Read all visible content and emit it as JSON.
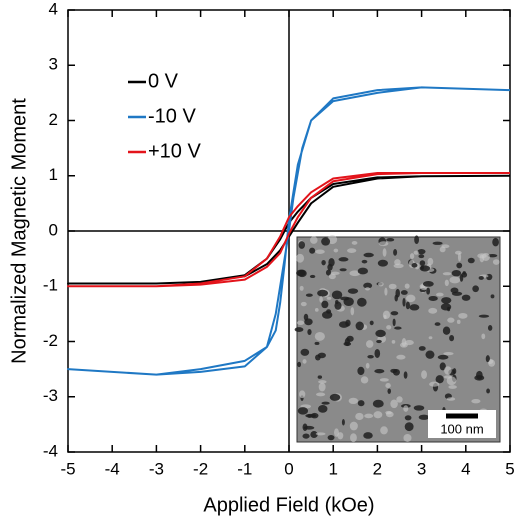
{
  "chart_data": {
    "type": "line",
    "xlabel": "Applied Field (kOe)",
    "ylabel": "Normalized Magnetic Moment",
    "xlim": [
      -5,
      5
    ],
    "ylim": [
      -4,
      4
    ],
    "xticks": [
      -5,
      -4,
      -3,
      -2,
      -1,
      0,
      1,
      2,
      3,
      4,
      5
    ],
    "yticks": [
      -4,
      -3,
      -2,
      -1,
      0,
      1,
      2,
      3,
      4
    ],
    "grid": false,
    "legend": "upper left",
    "inset_label": "100 nm",
    "series": [
      {
        "name": "0 V",
        "color": "#000000",
        "x": [
          5,
          3,
          2,
          1,
          0.5,
          0.2,
          0,
          -0.2,
          -0.5,
          -1,
          -2,
          -3,
          -5,
          -3,
          -2,
          -1,
          -0.5,
          -0.2,
          0,
          0.2,
          0.5,
          1,
          2,
          3,
          5
        ],
        "values": [
          1.0,
          0.99,
          0.97,
          0.85,
          0.6,
          0.35,
          0.15,
          -0.15,
          -0.5,
          -0.8,
          -0.92,
          -0.95,
          -0.95,
          -0.95,
          -0.92,
          -0.82,
          -0.6,
          -0.35,
          -0.1,
          0.15,
          0.5,
          0.8,
          0.95,
          0.99,
          1.0
        ]
      },
      {
        "name": "-10 V",
        "color": "#1f78c4",
        "x": [
          5,
          3,
          2,
          1,
          0.5,
          0.2,
          0,
          -0.1,
          -0.2,
          -0.3,
          -0.5,
          -1,
          -2,
          -3,
          -5,
          -3,
          -2,
          -1,
          -0.5,
          -0.3,
          -0.1,
          0,
          0.1,
          0.3,
          0.5,
          1,
          2,
          3,
          5
        ],
        "values": [
          2.55,
          2.6,
          2.55,
          2.4,
          2.0,
          1.2,
          0.2,
          -0.6,
          -1.3,
          -1.8,
          -2.1,
          -2.35,
          -2.5,
          -2.6,
          -2.5,
          -2.6,
          -2.55,
          -2.45,
          -2.1,
          -1.5,
          -0.5,
          0,
          0.6,
          1.5,
          2.0,
          2.35,
          2.5,
          2.6,
          2.55
        ]
      },
      {
        "name": "+10 V",
        "color": "#e3141b",
        "x": [
          5,
          3,
          2,
          1,
          0.5,
          0.2,
          0,
          -0.2,
          -0.5,
          -1,
          -2,
          -3,
          -5,
          -3,
          -2,
          -1,
          -0.5,
          -0.2,
          0,
          0.2,
          0.5,
          1,
          2,
          3,
          5
        ],
        "values": [
          1.05,
          1.05,
          1.05,
          0.95,
          0.7,
          0.45,
          0.25,
          -0.1,
          -0.5,
          -0.82,
          -0.95,
          -1.0,
          -1.0,
          -1.0,
          -0.97,
          -0.88,
          -0.65,
          -0.4,
          -0.05,
          0.25,
          0.6,
          0.9,
          1.03,
          1.05,
          1.05
        ]
      }
    ]
  }
}
